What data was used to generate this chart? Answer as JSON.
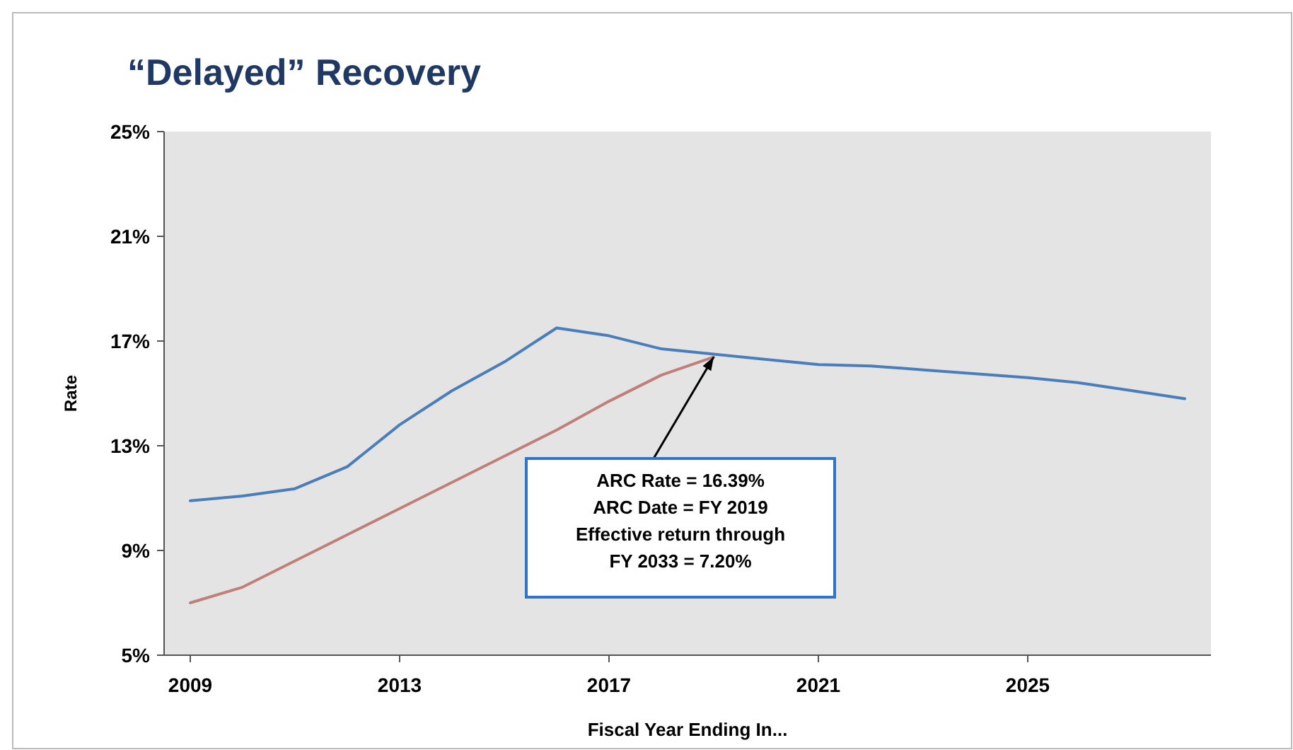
{
  "chart_data": {
    "type": "line",
    "title": "“Delayed” Recovery",
    "xlabel": "Fiscal Year Ending In...",
    "ylabel": "Rate",
    "xlim": [
      2008.5,
      2028.5
    ],
    "xticks": [
      2009,
      2013,
      2017,
      2021,
      2025
    ],
    "ylim": [
      5,
      25
    ],
    "yticks": [
      {
        "value": 5,
        "label": "5%"
      },
      {
        "value": 9,
        "label": "9%"
      },
      {
        "value": 13,
        "label": "13%"
      },
      {
        "value": 17,
        "label": "17%"
      },
      {
        "value": 21,
        "label": "21%"
      },
      {
        "value": 25,
        "label": "25%"
      }
    ],
    "grid": false,
    "marker": "none",
    "series": [
      {
        "color": "#4a7ebb",
        "x": [
          2009,
          2010,
          2011,
          2012,
          2013,
          2014,
          2015,
          2016,
          2017,
          2018,
          2019,
          2020,
          2021,
          2022,
          2023,
          2024,
          2025,
          2026,
          2027,
          2028
        ],
        "values": [
          10.9,
          11.08,
          11.36,
          12.2,
          13.8,
          15.1,
          16.2,
          17.5,
          17.2,
          16.7,
          16.5,
          16.3,
          16.1,
          16.05,
          15.9,
          15.75,
          15.6,
          15.4,
          15.1,
          14.8
        ]
      },
      {
        "color": "#c0807a",
        "x": [
          2009,
          2010,
          2011,
          2012,
          2013,
          2014,
          2015,
          2016,
          2017,
          2018,
          2019
        ],
        "values": [
          7.0,
          7.6,
          8.6,
          9.6,
          10.6,
          11.6,
          12.6,
          13.6,
          14.7,
          15.7,
          16.39
        ]
      }
    ],
    "annotations": [
      {
        "text": "ARC Rate = 16.39%\nARC Date = FY 2019\nEffective return through\nFY 2033 = 7.20%",
        "x": 2019,
        "y": 16.39
      }
    ]
  }
}
